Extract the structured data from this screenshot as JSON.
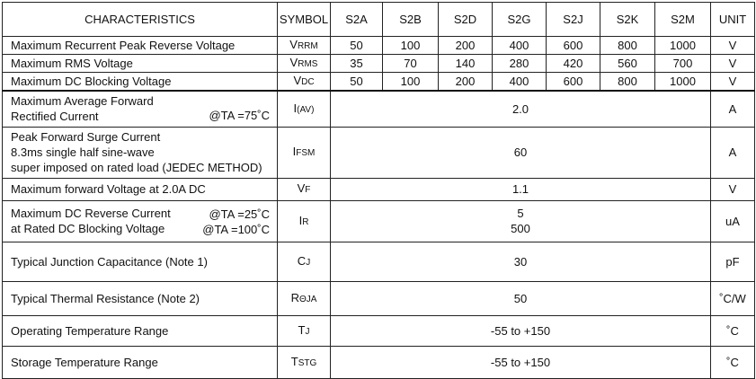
{
  "header": {
    "characteristics": "CHARACTERISTICS",
    "symbol": "SYMBOL",
    "parts": [
      "S2A",
      "S2B",
      "S2D",
      "S2G",
      "S2J",
      "S2K",
      "S2M"
    ],
    "unit": "UNIT"
  },
  "rows": [
    {
      "char": [
        "Maximum Recurrent Peak Reverse Voltage"
      ],
      "cond": [],
      "sym": {
        "main": "V",
        "sub": "RRM"
      },
      "values": [
        "50",
        "100",
        "200",
        "400",
        "600",
        "800",
        "1000"
      ],
      "unit": "V"
    },
    {
      "char": [
        "Maximum RMS Voltage"
      ],
      "cond": [],
      "sym": {
        "main": "V",
        "sub": "RMS"
      },
      "values": [
        "35",
        "70",
        "140",
        "280",
        "420",
        "560",
        "700"
      ],
      "unit": "V"
    },
    {
      "char": [
        "Maximum DC Blocking Voltage"
      ],
      "cond": [],
      "sym": {
        "main": "V",
        "sub": "DC"
      },
      "values": [
        "50",
        "100",
        "200",
        "400",
        "600",
        "800",
        "1000"
      ],
      "unit": "V"
    },
    {
      "char": [
        "Maximum Average Forward",
        "Rectified  Current"
      ],
      "cond": [
        "@TA =75˚C"
      ],
      "sym": {
        "main": "I",
        "sub": "(AV)"
      },
      "value": [
        "2.0"
      ],
      "unit": "A"
    },
    {
      "char": [
        "Peak Forward Surge Current",
        "8.3ms single half sine-wave",
        "super imposed on rated load (JEDEC METHOD)"
      ],
      "cond": [],
      "sym": {
        "main": "I",
        "sub": "FSM"
      },
      "value": [
        "60"
      ],
      "unit": "A"
    },
    {
      "char": [
        "Maximum forward Voltage at 2.0A DC"
      ],
      "cond": [],
      "sym": {
        "main": "V",
        "sub": "F"
      },
      "value": [
        "1.1"
      ],
      "unit": "V"
    },
    {
      "char": [
        "Maximum DC Reverse Current",
        "at Rated DC Blocking Voltage"
      ],
      "cond": [
        "@TA =25˚C",
        "@TA =100˚C"
      ],
      "sym": {
        "main": "I",
        "sub": "R"
      },
      "value": [
        "5",
        "500"
      ],
      "unit": "uA"
    },
    {
      "char": [
        "Typical Junction Capacitance (Note 1)"
      ],
      "cond": [],
      "sym": {
        "main": "C",
        "sub": "J"
      },
      "value": [
        "30"
      ],
      "unit": "pF"
    },
    {
      "char": [
        "Typical Thermal Resistance (Note 2)"
      ],
      "cond": [],
      "sym": {
        "main": "R",
        "sub": "θJA"
      },
      "value": [
        "50"
      ],
      "unit": "˚C/W"
    },
    {
      "char": [
        "Operating Temperature Range"
      ],
      "cond": [],
      "sym": {
        "main": "T",
        "sub": "J"
      },
      "value": [
        "-55 to +150"
      ],
      "unit": "˚C"
    },
    {
      "char": [
        "Storage Temperature Range"
      ],
      "cond": [],
      "sym": {
        "main": "T",
        "sub": "STG"
      },
      "value": [
        "-55 to +150"
      ],
      "unit": "˚C"
    }
  ]
}
